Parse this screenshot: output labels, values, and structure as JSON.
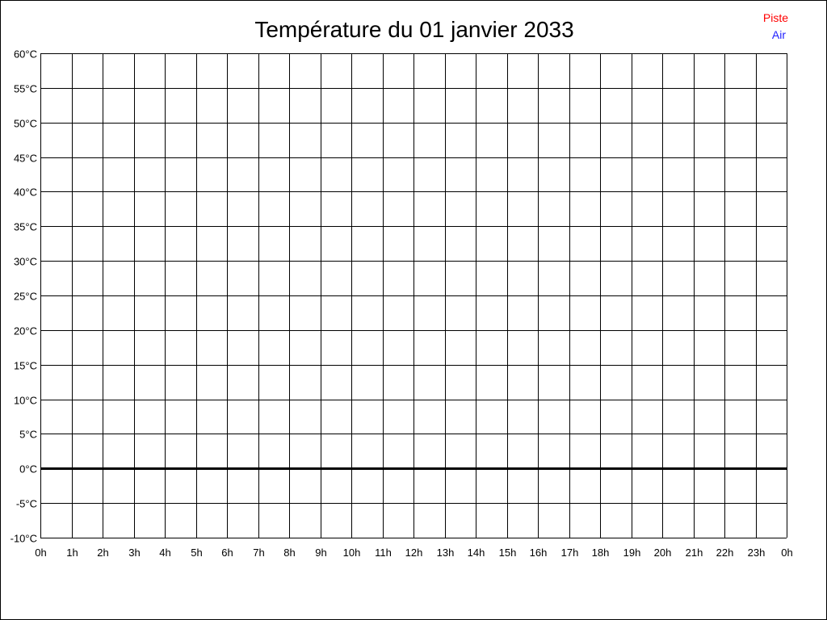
{
  "chart_data": {
    "type": "line",
    "title": "Température du 01 janvier 2033",
    "xlabel": "",
    "ylabel": "",
    "x_tick_labels": [
      "0h",
      "1h",
      "2h",
      "3h",
      "4h",
      "5h",
      "6h",
      "7h",
      "8h",
      "9h",
      "10h",
      "11h",
      "12h",
      "13h",
      "14h",
      "15h",
      "16h",
      "17h",
      "18h",
      "19h",
      "20h",
      "21h",
      "22h",
      "23h",
      "0h"
    ],
    "y_tick_labels": [
      "-10°C",
      "-5°C",
      "0°C",
      "5°C",
      "10°C",
      "15°C",
      "20°C",
      "25°C",
      "30°C",
      "35°C",
      "40°C",
      "45°C",
      "50°C",
      "55°C",
      "60°C"
    ],
    "xlim": [
      0,
      24
    ],
    "ylim": [
      -10,
      60
    ],
    "y_step": 5,
    "grid": true,
    "zero_line_emphasized": true,
    "legend_position": "top-right",
    "series": [
      {
        "name": "Piste",
        "color": "#ff0000",
        "values": []
      },
      {
        "name": "Air",
        "color": "#2020ff",
        "values": []
      }
    ]
  }
}
